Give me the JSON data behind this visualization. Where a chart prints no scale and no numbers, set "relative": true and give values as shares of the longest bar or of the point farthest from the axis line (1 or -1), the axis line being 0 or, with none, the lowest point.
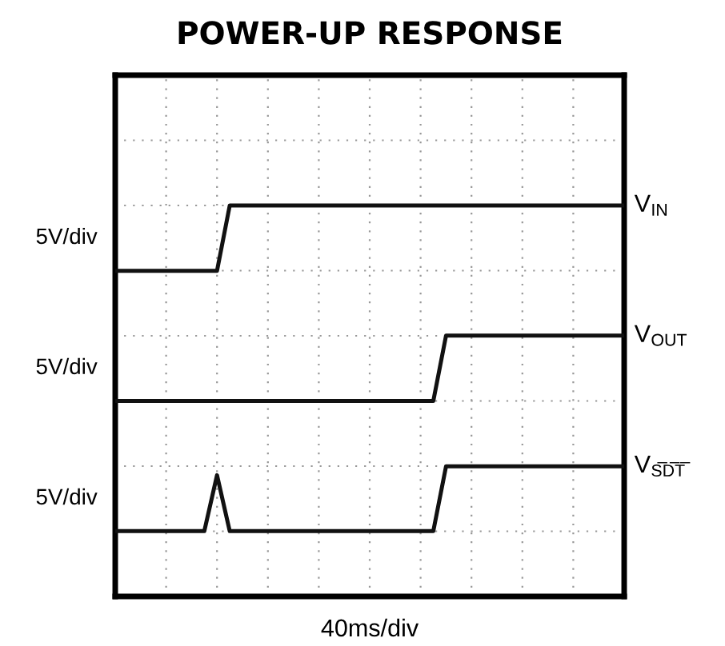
{
  "chart_data": {
    "type": "line",
    "title": "POWER-UP RESPONSE",
    "xlabel": "40ms/div",
    "relative": true,
    "grid": true,
    "legend": false,
    "categories": [
      null,
      null,
      null,
      null,
      null,
      null,
      null,
      null,
      null,
      null,
      null,
      null,
      null,
      null,
      null,
      null,
      null,
      null,
      null,
      null,
      null,
      null,
      null,
      null,
      null,
      null,
      null,
      null,
      null,
      null,
      null,
      null,
      null,
      null,
      null,
      null,
      null,
      null,
      null,
      null,
      null
    ],
    "series": [
      {
        "name": "V$_{IN}$",
        "color": "#111111",
        "values": [
          0.833,
          0.833,
          0.833,
          0.833,
          0.833,
          0.833,
          0.833,
          0.833,
          0.833,
          1,
          1,
          1,
          1,
          1,
          1,
          1,
          1,
          1,
          1,
          1,
          1,
          1,
          1,
          1,
          1,
          1,
          1,
          1,
          1,
          1,
          1,
          1,
          1,
          1,
          1,
          1,
          1,
          1,
          1,
          1,
          1
        ]
      },
      {
        "name": "V$_{OUT}$",
        "color": "#111111",
        "values": [
          0.5,
          0.5,
          0.5,
          0.5,
          0.5,
          0.5,
          0.5,
          0.5,
          0.5,
          0.5,
          0.5,
          0.5,
          0.5,
          0.5,
          0.5,
          0.5,
          0.5,
          0.5,
          0.5,
          0.5,
          0.5,
          0.5,
          0.5,
          0.5,
          0.5,
          0.5,
          0.667,
          0.667,
          0.667,
          0.667,
          0.667,
          0.667,
          0.667,
          0.667,
          0.667,
          0.667,
          0.667,
          0.667,
          0.667,
          0.667,
          0.667
        ]
      },
      {
        "name": "V$_{S̅D̅T̅}$",
        "color": "#111111",
        "values": [
          0.167,
          0.167,
          0.167,
          0.167,
          0.167,
          0.167,
          0.167,
          0.167,
          0.31,
          0.167,
          0.167,
          0.167,
          0.167,
          0.167,
          0.167,
          0.167,
          0.167,
          0.167,
          0.167,
          0.167,
          0.167,
          0.167,
          0.167,
          0.167,
          0.167,
          0.167,
          0.333,
          0.333,
          0.333,
          0.333,
          0.333,
          0.333,
          0.333,
          0.333,
          0.333,
          0.333,
          0.333,
          0.333,
          0.333,
          0.333,
          0.333
        ]
      }
    ],
    "annotations": [
      "5V/div",
      "5V/div",
      "5V/div"
    ]
  }
}
